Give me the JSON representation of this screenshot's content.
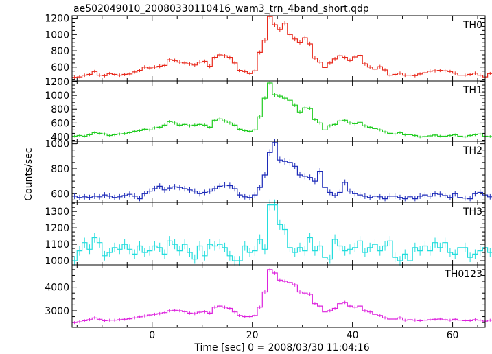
{
  "chart_data": {
    "type": "line",
    "title": "ae502049010_20080330110416_wam3_trn_4band_short.qdp",
    "ylabel": "Counts/sec",
    "xlabel": "Time [sec] 0 = 2008/03/30 11:04:16",
    "xlim": [
      -16,
      66.5
    ],
    "x_ticks": [
      0,
      20,
      40,
      60
    ],
    "bin_start": -15.5,
    "bin_width": 1.0,
    "panels": [
      {
        "name": "TH0",
        "color": "#e8291c",
        "ylim": [
          430,
          1230
        ],
        "y_ticks": [
          600,
          800,
          1000,
          1200
        ],
        "values": [
          475,
          480,
          500,
          510,
          545,
          500,
          495,
          520,
          510,
          500,
          510,
          515,
          540,
          560,
          600,
          590,
          600,
          610,
          620,
          690,
          680,
          660,
          650,
          640,
          625,
          660,
          670,
          610,
          720,
          750,
          740,
          720,
          650,
          560,
          545,
          520,
          555,
          780,
          930,
          1220,
          1120,
          1060,
          1140,
          1000,
          945,
          905,
          960,
          885,
          710,
          660,
          595,
          650,
          700,
          740,
          720,
          680,
          725,
          745,
          640,
          600,
          575,
          605,
          565,
          500,
          510,
          525,
          500,
          500,
          495,
          515,
          530,
          550,
          555,
          560,
          555,
          545,
          525,
          500,
          500,
          510,
          525,
          500,
          480,
          520,
          505,
          495
        ]
      },
      {
        "name": "TH1",
        "color": "#22cc22",
        "ylim": [
          335,
          1210
        ],
        "y_ticks": [
          400,
          600,
          800,
          1000,
          1200
        ],
        "values": [
          410,
          420,
          410,
          430,
          460,
          450,
          440,
          420,
          430,
          440,
          445,
          460,
          480,
          490,
          510,
          500,
          530,
          540,
          570,
          620,
          600,
          570,
          580,
          560,
          570,
          580,
          570,
          540,
          640,
          660,
          630,
          600,
          570,
          510,
          490,
          480,
          500,
          690,
          960,
          1180,
          1010,
          990,
          960,
          930,
          860,
          760,
          820,
          810,
          650,
          600,
          500,
          560,
          580,
          630,
          640,
          600,
          590,
          610,
          560,
          540,
          520,
          500,
          470,
          450,
          440,
          460,
          430,
          430,
          420,
          400,
          405,
          415,
          425,
          410,
          410,
          420,
          430,
          410,
          400,
          420,
          430,
          440,
          410,
          405,
          400,
          425
        ]
      },
      {
        "name": "TH2",
        "color": "#1c2ab8",
        "ylim": [
          530,
          1020
        ],
        "y_ticks": [
          600,
          800,
          1000
        ],
        "values": [
          580,
          570,
          575,
          570,
          580,
          575,
          590,
          580,
          570,
          575,
          585,
          595,
          580,
          560,
          600,
          620,
          640,
          660,
          630,
          645,
          655,
          650,
          640,
          630,
          620,
          600,
          610,
          620,
          640,
          660,
          670,
          665,
          640,
          590,
          575,
          570,
          590,
          650,
          750,
          930,
          1010,
          870,
          860,
          850,
          820,
          750,
          740,
          730,
          700,
          780,
          650,
          610,
          585,
          610,
          690,
          620,
          600,
          590,
          580,
          570,
          580,
          575,
          560,
          580,
          580,
          570,
          560,
          575,
          560,
          580,
          590,
          580,
          600,
          595,
          585,
          570,
          600,
          570,
          565,
          560,
          600,
          610,
          590,
          575,
          580,
          600
        ]
      },
      {
        "name": "TH3",
        "color": "#22dddd",
        "ylim": [
          975,
          1355
        ],
        "y_ticks": [
          1000,
          1100,
          1200,
          1300
        ],
        "values": [
          1000,
          1060,
          1110,
          1070,
          1140,
          1110,
          1030,
          1050,
          1080,
          1070,
          1100,
          1070,
          1040,
          1090,
          1050,
          1060,
          1090,
          1080,
          1040,
          1120,
          1100,
          1060,
          1100,
          1050,
          1010,
          1090,
          1030,
          1100,
          1090,
          1100,
          1080,
          1030,
          1000,
          1000,
          1090,
          1050,
          1060,
          1130,
          1070,
          1340,
          1340,
          1220,
          1190,
          1080,
          1050,
          1080,
          1060,
          1140,
          1060,
          1090,
          1020,
          1010,
          1130,
          1090,
          1060,
          1070,
          1080,
          1120,
          1050,
          1080,
          1100,
          1060,
          1090,
          1120,
          1020,
          1000,
          1040,
          1000,
          1080,
          1060,
          1090,
          1060,
          1110,
          1080,
          1110,
          1050,
          1040,
          1080,
          1080,
          1020,
          1040,
          1060,
          1080,
          1050,
          1070,
          1060
        ]
      },
      {
        "name": "TH0123",
        "color": "#dd22dd",
        "ylim": [
          2300,
          4950
        ],
        "y_ticks": [
          3000,
          4000
        ],
        "values": [
          2500,
          2530,
          2580,
          2620,
          2700,
          2640,
          2580,
          2600,
          2600,
          2620,
          2640,
          2660,
          2700,
          2740,
          2780,
          2820,
          2850,
          2880,
          2920,
          3000,
          3020,
          3000,
          2960,
          2900,
          2880,
          2940,
          2960,
          2900,
          3150,
          3200,
          3150,
          3100,
          2950,
          2800,
          2750,
          2750,
          2800,
          3150,
          3800,
          4750,
          4600,
          4300,
          4250,
          4200,
          4100,
          3800,
          3750,
          3700,
          3300,
          3200,
          2950,
          3000,
          3100,
          3300,
          3350,
          3200,
          3150,
          3200,
          3000,
          2950,
          2850,
          2800,
          2700,
          2650,
          2650,
          2700,
          2600,
          2620,
          2600,
          2580,
          2600,
          2620,
          2640,
          2650,
          2620,
          2600,
          2640,
          2600,
          2580,
          2580,
          2620,
          2600,
          2560,
          2600,
          2580,
          2560
        ]
      }
    ]
  }
}
